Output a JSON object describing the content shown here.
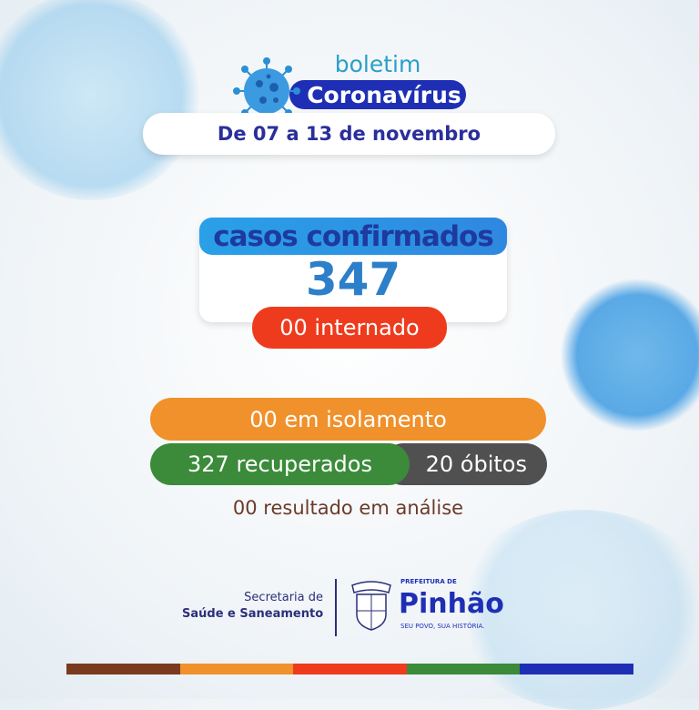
{
  "header": {
    "title_top": "boletim",
    "title_main": "Coronavírus",
    "date_range": "De 07 a 13 de novembro"
  },
  "cases": {
    "label": "casos confirmados",
    "count": "347",
    "hospitalized": "00 internado"
  },
  "status": {
    "isolation": "00 em isolamento",
    "recovered": "327 recuperados",
    "deaths": "20 óbitos",
    "pending": "00 resultado em análise"
  },
  "footer": {
    "secretaria_line1": "Secretaria de",
    "secretaria_line2": "Saúde e Saneamento",
    "crest_text": "PINHÃO",
    "prefeitura_label": "PREFEITURA DE",
    "city": "Pinhão",
    "slogan": "SEU POVO, SUA HISTÓRIA."
  },
  "colors": {
    "dark_blue": "#1f2fb5",
    "light_blue": "#2f95e3",
    "red": "#ef3b1d",
    "orange": "#f0912b",
    "green": "#3b8b3a",
    "gray": "#505050",
    "brown": "#7a3a1e"
  },
  "icons": [
    "virus-icon",
    "crest-icon"
  ]
}
